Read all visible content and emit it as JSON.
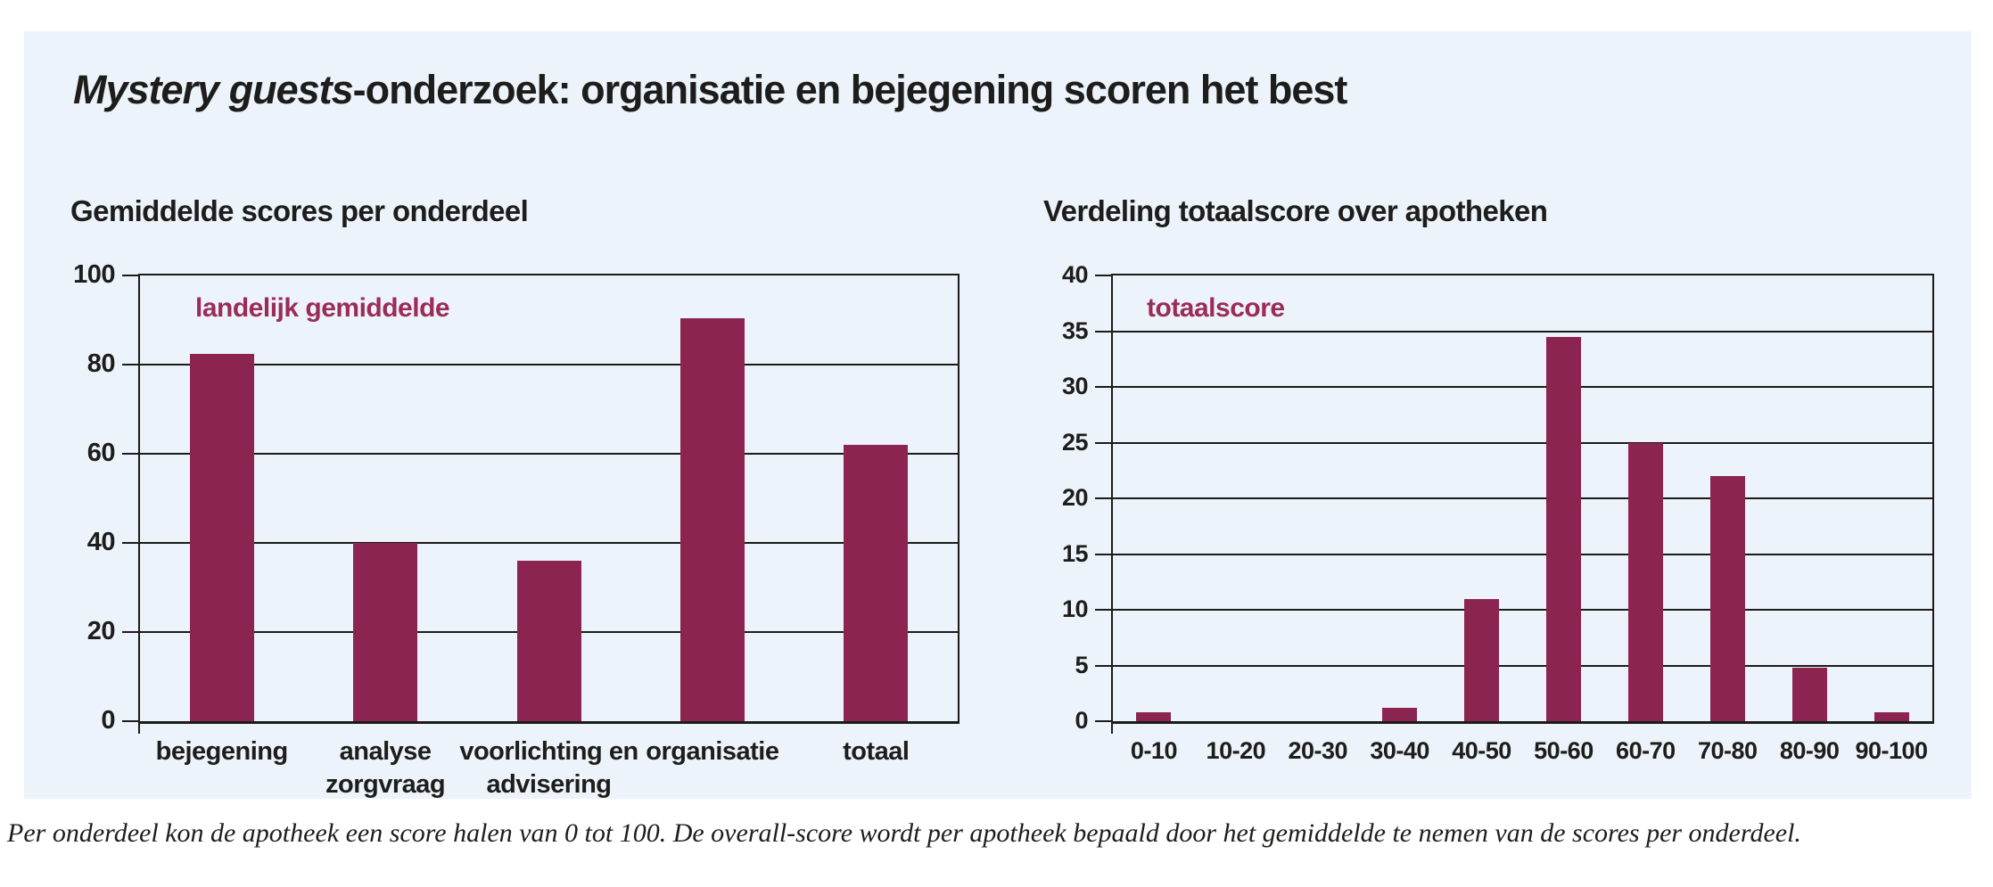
{
  "title": {
    "italic_part": "Mystery guests",
    "rest": "-onderzoek: organisatie en bejegening scoren het best"
  },
  "caption": "Per onderdeel kon de apotheek een score halen van 0 tot 100. De overall-score wordt per apotheek bepaald door het gemiddelde te nemen van de scores per onderdeel.",
  "colors": {
    "panel_background": "#edf3fa",
    "bar": "#8c2450",
    "legend_text": "#9b2c58",
    "axis_line": "#1b1b19",
    "text": "#1d1d1b"
  },
  "chart_data": [
    {
      "type": "bar",
      "title": "Gemiddelde scores per onderdeel",
      "legend": "landelijk gemiddelde",
      "legend_position": "top-left-inside",
      "categories": [
        "bejegening",
        "analyse\nzorgvraag",
        "voorlichting en\nadvisering",
        "organisatie",
        "totaal"
      ],
      "values": [
        82.5,
        40,
        36,
        90.5,
        62
      ],
      "xlabel": "",
      "ylabel": "",
      "ylim": [
        0,
        100
      ],
      "ystep": 20,
      "grid": true
    },
    {
      "type": "bar",
      "title": "Verdeling totaalscore over apotheken",
      "legend": "totaalscore",
      "legend_position": "top-left-inside",
      "categories": [
        "0-10",
        "10-20",
        "20-30",
        "30-40",
        "40-50",
        "50-60",
        "60-70",
        "70-80",
        "80-90",
        "90-100"
      ],
      "values": [
        0.8,
        0,
        0,
        1.2,
        11,
        34.5,
        25,
        22,
        4.8,
        0.8
      ],
      "xlabel": "",
      "ylabel": "",
      "ylim": [
        0,
        40
      ],
      "ystep": 5,
      "grid": true
    }
  ]
}
